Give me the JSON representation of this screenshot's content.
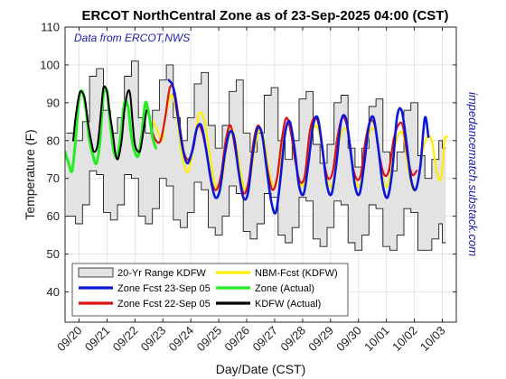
{
  "chart_data": {
    "type": "line",
    "title": "ERCOT NorthCentral Zone as of 23-Sep-2025 04:00 (CST)",
    "xlabel": "Day/Date (CST)",
    "ylabel": "Temperature (F)",
    "ylim": [
      32,
      110
    ],
    "yticks": [
      40,
      50,
      60,
      70,
      80,
      90,
      100,
      110
    ],
    "xlim": [
      -12,
      324
    ],
    "xtick_labels": [
      "09/20",
      "09/21",
      "09/22",
      "09/23",
      "09/24",
      "09/25",
      "09/26",
      "09/27",
      "09/28",
      "09/29",
      "09/30",
      "10/01",
      "10/02",
      "10/03"
    ],
    "grid": true,
    "legend_position": "bottom-left",
    "annotations": [
      "Data from ERCOT,NWS",
      "impedancematch.substack.com"
    ],
    "range_band": {
      "name": "20-Yr Range KDFW",
      "x": [
        -11,
        -3,
        3,
        9,
        15,
        21,
        27,
        33,
        39,
        45,
        51,
        57,
        63,
        69,
        75,
        81,
        87,
        93,
        99,
        105,
        111,
        117,
        123,
        129,
        135,
        141,
        147,
        153,
        159,
        165,
        171,
        177,
        183,
        189,
        195,
        201,
        207,
        213,
        219,
        225,
        231,
        237,
        243,
        249,
        255,
        261,
        267,
        273,
        279,
        285,
        291,
        297,
        303,
        309,
        312
      ],
      "low": [
        60,
        58,
        63,
        72,
        71,
        61,
        59,
        63,
        71,
        70,
        60,
        58,
        62,
        70,
        68,
        59,
        57,
        61,
        69,
        67,
        57,
        55,
        60,
        68,
        66,
        56,
        54,
        58,
        66,
        65,
        55,
        53,
        57,
        65,
        64,
        54,
        52,
        57,
        64,
        63,
        53,
        51,
        55,
        63,
        62,
        52,
        51,
        55,
        62,
        61,
        51,
        51,
        54,
        58,
        53
      ],
      "high": [
        82,
        80,
        85,
        97,
        99,
        88,
        82,
        86,
        97,
        101,
        86,
        82,
        88,
        96,
        100,
        86,
        80,
        86,
        95,
        98,
        84,
        78,
        84,
        93,
        96,
        82,
        77,
        82,
        92,
        94,
        80,
        75,
        80,
        91,
        93,
        79,
        74,
        79,
        90,
        92,
        78,
        73,
        78,
        89,
        91,
        77,
        72,
        77,
        88,
        90,
        76,
        70,
        75,
        80,
        78
      ]
    },
    "series": [
      {
        "name": "NBM-Fcst (KDFW)",
        "color": "#ffee00",
        "width": 2.2,
        "x": [
          64,
          68,
          71,
          73,
          76,
          79,
          82,
          85,
          88,
          92,
          95,
          99,
          103,
          107,
          111,
          115,
          119,
          123,
          127,
          131,
          135,
          139,
          143,
          147,
          151,
          155,
          159,
          163,
          167,
          171,
          175,
          179,
          183,
          187,
          191,
          195,
          199,
          203,
          207,
          211,
          215,
          219,
          223,
          227,
          231,
          235,
          239,
          243,
          247,
          251,
          255,
          259,
          263,
          267,
          271,
          275,
          279,
          283,
          287,
          291,
          295,
          299,
          303,
          307,
          311,
          314,
          316
        ],
        "y": [
          85,
          82,
          80,
          84,
          89,
          92,
          90,
          84,
          77,
          72,
          73,
          80,
          87,
          86,
          79,
          71,
          67,
          70,
          79,
          83,
          79,
          71,
          67,
          70,
          78,
          83,
          80,
          72,
          68,
          71,
          80,
          84,
          82,
          73,
          68,
          71,
          80,
          84,
          81,
          73,
          68,
          70,
          79,
          83,
          82,
          73,
          68,
          70,
          79,
          83,
          82,
          73,
          68,
          70,
          78,
          82,
          81,
          72,
          67,
          69,
          77,
          81,
          80,
          72,
          70,
          80,
          81
        ]
      },
      {
        "name": "Zone Fcst 22-Sep 05",
        "color": "#dd1111",
        "width": 2.2,
        "x": [
          62,
          66,
          70,
          74,
          78,
          82,
          86,
          90,
          94,
          98,
          102,
          106,
          110,
          114,
          118,
          122,
          126,
          130,
          134,
          138,
          142,
          146,
          150,
          154,
          158,
          162,
          166,
          170,
          174,
          178,
          182,
          186,
          190,
          194,
          198,
          202,
          206,
          210,
          214,
          218,
          222,
          226,
          230,
          234,
          238,
          242,
          246,
          250,
          254,
          258,
          262,
          266,
          270,
          274,
          278,
          282,
          286,
          290
        ],
        "y": [
          83,
          80,
          80,
          86,
          94,
          93,
          85,
          77,
          75,
          78,
          84,
          82,
          76,
          69,
          67,
          71,
          80,
          84,
          78,
          70,
          66,
          70,
          80,
          84,
          80,
          72,
          67,
          70,
          80,
          86,
          82,
          74,
          69,
          71,
          82,
          86,
          84,
          75,
          70,
          72,
          81,
          86,
          84,
          75,
          70,
          71,
          80,
          85,
          84,
          76,
          71,
          72,
          80,
          84,
          84,
          76,
          71,
          72
        ]
      },
      {
        "name": "Zone Fcst 23-Sep 05",
        "color": "#0a17d8",
        "width": 2.6,
        "x": [
          77,
          81,
          85,
          89,
          93,
          97,
          101,
          105,
          109,
          113,
          117,
          121,
          125,
          129,
          133,
          137,
          141,
          145,
          149,
          153,
          157,
          161,
          165,
          169,
          173,
          177,
          181,
          185,
          189,
          193,
          197,
          201,
          205,
          209,
          213,
          217,
          221,
          225,
          229,
          233,
          237,
          241,
          245,
          249,
          253,
          257,
          261,
          265,
          269,
          273,
          277,
          281,
          285,
          289,
          293,
          297,
          300
        ],
        "y": [
          96,
          94,
          86,
          78,
          74,
          77,
          83,
          84,
          78,
          70,
          65,
          67,
          76,
          82,
          81,
          72,
          65,
          66,
          76,
          83,
          82,
          73,
          64,
          61,
          70,
          82,
          85,
          78,
          68,
          66,
          74,
          84,
          86,
          78,
          68,
          66,
          74,
          85,
          86,
          78,
          68,
          66,
          74,
          84,
          86,
          78,
          68,
          65,
          72,
          86,
          88,
          80,
          70,
          67,
          73,
          86,
          81
        ]
      },
      {
        "name": "Zone (Actual)",
        "color": "#22ee22",
        "width": 3.0,
        "x": [
          -12,
          -9,
          -6,
          -3,
          0,
          3,
          6,
          9,
          12,
          15,
          18,
          21,
          24,
          27,
          30,
          33,
          36,
          39,
          42,
          45,
          48,
          51,
          54,
          57,
          60,
          63,
          66
        ],
        "y": [
          77,
          74,
          72,
          80,
          91,
          93,
          88,
          80,
          76,
          74,
          80,
          92,
          93,
          84,
          77,
          76,
          82,
          90,
          89,
          81,
          77,
          76,
          82,
          90,
          87,
          81,
          78
        ]
      },
      {
        "name": "KDFW (Actual)",
        "color": "#000000",
        "width": 2.0,
        "x": [
          -5,
          -3,
          0,
          2,
          5,
          8,
          11,
          13,
          16,
          19,
          21,
          24,
          26,
          29,
          31,
          33,
          35,
          37,
          39,
          42,
          44,
          46,
          48,
          51,
          53,
          56,
          58
        ],
        "y": [
          80,
          86,
          92,
          93,
          91,
          84,
          79,
          77,
          79,
          88,
          94,
          93,
          88,
          82,
          77,
          75,
          77,
          81,
          88,
          93,
          92,
          85,
          79,
          77,
          78,
          84,
          88
        ]
      }
    ]
  }
}
